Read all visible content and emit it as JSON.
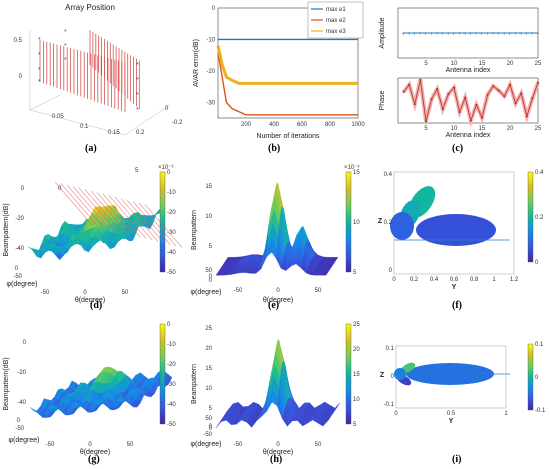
{
  "figure": {
    "labels": {
      "a": "(a)",
      "b": "(b)",
      "c": "(c)",
      "d": "(d)",
      "e": "(e)",
      "f": "(f)",
      "g": "(g)",
      "h": "(h)",
      "i": "(i)"
    }
  },
  "palette": {
    "parula_low": "#3e26a8",
    "parula_mid": "#12b5a0",
    "parula_high": "#f9fb0e",
    "red": "#d9534f",
    "blue": "#1f77b4",
    "gold": "#ecb01f",
    "orange": "#d95319"
  },
  "chart_data": [
    {
      "id": "a",
      "type": "scatter",
      "title": "Array Position",
      "z_ticks": [
        "0",
        "0.5"
      ],
      "x_ticks": [
        "0.05",
        "0.1",
        "0.15",
        "0.2"
      ],
      "y_ticks": [
        "-0.2",
        "0"
      ]
    },
    {
      "id": "b",
      "type": "line",
      "xlabel": "Number of iterations",
      "ylabel": "AVAR error(dB)",
      "xlim": [
        0,
        1000
      ],
      "ylim": [
        -35,
        0
      ],
      "x_ticks": [
        "200",
        "400",
        "600",
        "800",
        "1000"
      ],
      "y_ticks": [
        "0",
        "-10",
        "-20",
        "-30"
      ],
      "series": [
        {
          "name": "max e1",
          "color": "#1f77b4",
          "x": [
            0,
            50,
            100,
            200,
            400,
            600,
            800,
            1000
          ],
          "y": [
            -10,
            -10,
            -10,
            -10,
            -10,
            -10,
            -10,
            -10
          ]
        },
        {
          "name": "max e2",
          "color": "#d95319",
          "x": [
            0,
            30,
            60,
            100,
            150,
            200,
            400,
            600,
            800,
            1000
          ],
          "y": [
            -14,
            -22,
            -30,
            -32,
            -33,
            -34,
            -34,
            -34,
            -34,
            -34
          ]
        },
        {
          "name": "max e3",
          "color": "#ecb01f",
          "x": [
            0,
            30,
            60,
            100,
            150,
            200,
            400,
            600,
            800,
            1000
          ],
          "y": [
            -12,
            -18,
            -22,
            -23,
            -24,
            -24,
            -24,
            -24,
            -24,
            -24
          ]
        }
      ]
    },
    {
      "id": "c1",
      "type": "line",
      "xlabel": "Antenna index",
      "ylabel": "Amplitude",
      "xlim": [
        0,
        25
      ],
      "ylim": [
        0,
        2
      ],
      "x_ticks": [
        "5",
        "10",
        "15",
        "20",
        "25"
      ],
      "x": [
        1,
        2,
        3,
        4,
        5,
        6,
        7,
        8,
        9,
        10,
        11,
        12,
        13,
        14,
        15,
        16,
        17,
        18,
        19,
        20,
        21,
        22,
        23,
        24,
        25
      ],
      "y": [
        1,
        1,
        1,
        1,
        1,
        1,
        1,
        1,
        1,
        1,
        1,
        1,
        1,
        1,
        1,
        1,
        1,
        1,
        1,
        1,
        1,
        1,
        1,
        1,
        1
      ]
    },
    {
      "id": "c2",
      "type": "line",
      "xlabel": "Antenna index",
      "ylabel": "Phase",
      "xlim": [
        0,
        25
      ],
      "ylim": [
        -3.14,
        3.14
      ],
      "x_ticks": [
        "5",
        "10",
        "15",
        "20",
        "25"
      ],
      "x": [
        1,
        2,
        3,
        4,
        5,
        6,
        7,
        8,
        9,
        10,
        11,
        12,
        13,
        14,
        15,
        16,
        17,
        18,
        19,
        20,
        21,
        22,
        23,
        24,
        25
      ],
      "y": [
        1.2,
        2.2,
        -0.5,
        2.9,
        -2.9,
        0.2,
        1.6,
        -1.2,
        0.9,
        1.8,
        -1.6,
        0.4,
        -2.8,
        -0.6,
        -2.4,
        0.8,
        2.0,
        1.4,
        0.6,
        2.2,
        -0.4,
        1.0,
        -2.2,
        0.3,
        2.5
      ]
    },
    {
      "id": "d",
      "type": "heatmap",
      "zlabel": "Beampattern(dB)",
      "xlabel": "θ(degree)",
      "ylabel": "φ(degree)",
      "z_ticks": [
        "0",
        "-20",
        "-40"
      ],
      "x_ticks": [
        "-50",
        "0",
        "50"
      ],
      "y_ticks": [
        "-50",
        "0"
      ],
      "colorbar": {
        "ticks": [
          "0",
          "-10",
          "-20",
          "-30",
          "-40",
          "-50"
        ]
      },
      "exponent": "×10⁻³",
      "extra_ticks": [
        "5",
        "0"
      ]
    },
    {
      "id": "e",
      "type": "heatmap",
      "zlabel": "Beampattern",
      "xlabel": "θ(degree)",
      "ylabel": "φ(degree)",
      "z_ticks": [
        "15",
        "10",
        "5",
        "0"
      ],
      "x_ticks": [
        "-50",
        "0",
        "50"
      ],
      "y_ticks": [
        "50",
        "0"
      ],
      "colorbar": {
        "ticks": [
          "15",
          "10",
          "5"
        ]
      },
      "exponent": "×10⁻³",
      "peaks": [
        {
          "theta": 0,
          "value": 15
        },
        {
          "theta": 28,
          "value": 7
        }
      ]
    },
    {
      "id": "f",
      "type": "area",
      "xlabel": "Y",
      "ylabel": "Z",
      "x_ticks": [
        "0",
        "0.2",
        "0.4",
        "0.6",
        "0.8",
        "1",
        "1.2"
      ],
      "y_ticks": [
        "0.4",
        "0.2",
        "0"
      ],
      "colorbar": {
        "ticks": [
          "0.4",
          "0.2",
          "0"
        ]
      }
    },
    {
      "id": "g",
      "type": "heatmap",
      "zlabel": "Beampattern(dB)",
      "xlabel": "θ(degree)",
      "ylabel": "φ(degree)",
      "z_ticks": [
        "0",
        "-20",
        "-40"
      ],
      "x_ticks": [
        "-50",
        "0",
        "50"
      ],
      "y_ticks": [
        "-50",
        "0"
      ],
      "colorbar": {
        "ticks": [
          "0",
          "-10",
          "-20",
          "-30",
          "-40",
          "-50"
        ]
      }
    },
    {
      "id": "h",
      "type": "heatmap",
      "zlabel": "Beampattern",
      "xlabel": "θ(degree)",
      "ylabel": "φ(degree)",
      "z_ticks": [
        "25",
        "20",
        "15",
        "10",
        "5",
        "0"
      ],
      "x_ticks": [
        "-50",
        "0",
        "50"
      ],
      "y_ticks": [
        "50",
        "0",
        "-50"
      ],
      "colorbar": {
        "ticks": [
          "25",
          "20",
          "15",
          "10",
          "5"
        ]
      },
      "peaks": [
        {
          "theta": 0,
          "value": 20
        }
      ]
    },
    {
      "id": "i",
      "type": "area",
      "xlabel": "Y",
      "ylabel": "Z",
      "x_ticks": [
        "0",
        "0.5",
        "1"
      ],
      "y_ticks": [
        "0.1",
        "0",
        "-0.1"
      ],
      "colorbar": {
        "ticks": [
          "0.1",
          "0",
          "-0.1"
        ]
      }
    }
  ]
}
